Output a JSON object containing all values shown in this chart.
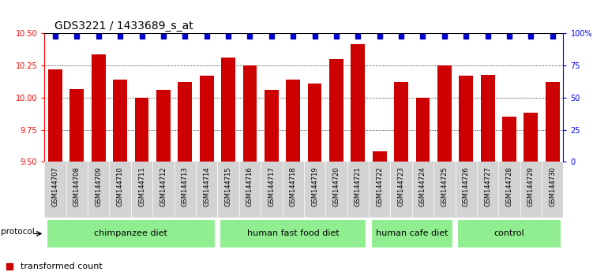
{
  "title": "GDS3221 / 1433689_s_at",
  "samples": [
    "GSM144707",
    "GSM144708",
    "GSM144709",
    "GSM144710",
    "GSM144711",
    "GSM144712",
    "GSM144713",
    "GSM144714",
    "GSM144715",
    "GSM144716",
    "GSM144717",
    "GSM144718",
    "GSM144719",
    "GSM144720",
    "GSM144721",
    "GSM144722",
    "GSM144723",
    "GSM144724",
    "GSM144725",
    "GSM144726",
    "GSM144727",
    "GSM144728",
    "GSM144729",
    "GSM144730"
  ],
  "values": [
    10.22,
    10.07,
    10.34,
    10.14,
    10.0,
    10.06,
    10.12,
    10.17,
    10.31,
    10.25,
    10.06,
    10.14,
    10.11,
    10.3,
    10.42,
    9.58,
    10.12,
    10.0,
    10.25,
    10.17,
    10.18,
    9.85,
    9.88,
    10.12
  ],
  "bar_color": "#CC0000",
  "percentile_color": "#0000CC",
  "ylim": [
    9.5,
    10.5
  ],
  "yticks": [
    9.5,
    9.75,
    10.0,
    10.25,
    10.5
  ],
  "right_yticks": [
    0,
    25,
    50,
    75,
    100
  ],
  "groups_info": [
    [
      "chimpanzee diet",
      0,
      8
    ],
    [
      "human fast food diet",
      8,
      15
    ],
    [
      "human cafe diet",
      15,
      19
    ],
    [
      "control",
      19,
      24
    ]
  ],
  "group_bg": "#90EE90",
  "xlabel_bg": "#D3D3D3",
  "title_fontsize": 10,
  "tick_fontsize": 7,
  "label_fontsize": 8
}
